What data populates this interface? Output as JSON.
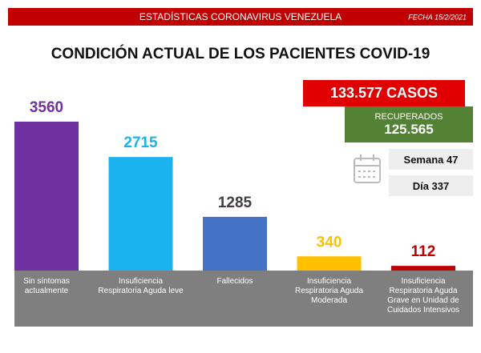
{
  "header": {
    "title": "ESTADÍSTICAS CORONAVIRUS VENEZUELA",
    "date": "FECHA 15/2/2021"
  },
  "chart_data": {
    "type": "bar",
    "title": "CONDICIÓN ACTUAL DE LOS PACIENTES COVID-19",
    "categories": [
      "Sin síntomas\nactualmente",
      "Insuficiencia\nRespiratoria Aguda leve",
      "Fallecidos",
      "Insuficiencia\nRespiratoria Aguda\nModerada",
      "Insuficiencia\nRespiratoria Aguda\nGrave en Unidad de\nCuidados Intensivos"
    ],
    "values": [
      3560,
      2715,
      1285,
      340,
      112
    ],
    "colors": [
      "#7030a0",
      "#1ab3f0",
      "#4472c4",
      "#ffc000",
      "#c00000"
    ],
    "label_colors": [
      "#7030a0",
      "#1ab3f0",
      "#404040",
      "#ffc000",
      "#c00000"
    ]
  },
  "panel": {
    "cases": "133.577 CASOS",
    "recovered_label": "RECUPERADOS",
    "recovered_value": "125.565",
    "week": "Semana 47",
    "day": "Día 337"
  }
}
